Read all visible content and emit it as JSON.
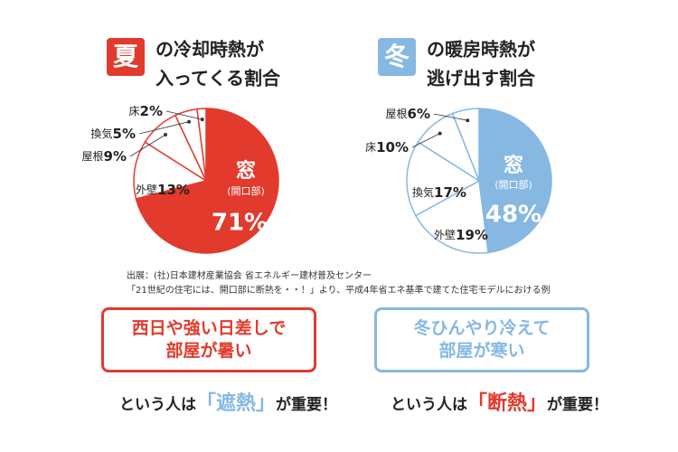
{
  "chart_data": [
    {
      "type": "pie",
      "badge": "夏",
      "title": [
        "の冷却時熱が",
        "入ってくる割合"
      ],
      "color": "#e23a2c",
      "categories": [
        "窓",
        "外壁",
        "屋根",
        "換気",
        "床"
      ],
      "sublabel": "(開口部)",
      "values": [
        71,
        13,
        9,
        5,
        2
      ],
      "value_labels": [
        "71%",
        "13%",
        "9%",
        "5%",
        "2%"
      ]
    },
    {
      "type": "pie",
      "badge": "冬",
      "title": [
        "の暖房時熱が",
        "逃げ出す割合"
      ],
      "color": "#86b8e2",
      "categories": [
        "窓",
        "外壁",
        "換気",
        "床",
        "屋根"
      ],
      "sublabel": "(開口部)",
      "values": [
        48,
        19,
        17,
        10,
        6
      ],
      "value_labels": [
        "48%",
        "19%",
        "17%",
        "10%",
        "6%"
      ]
    }
  ],
  "source": [
    "出展：(社)日本建材産業協会 省エネルギー建材普及センター",
    "「21世紀の住宅には、開口部に断熱を・・！」より、平成4年省エネ基準で建てた住宅モデルにおける例"
  ],
  "callouts": [
    {
      "lines": [
        "西日や強い日差しで",
        "部屋が暑い"
      ],
      "lead": "という人は",
      "keyword": "「遮熱」",
      "tail": "が重要！"
    },
    {
      "lines": [
        "冬ひんやり冷えて",
        "部屋が寒い"
      ],
      "lead": "という人は",
      "keyword": "「断熱」",
      "tail": "が重要！"
    }
  ]
}
